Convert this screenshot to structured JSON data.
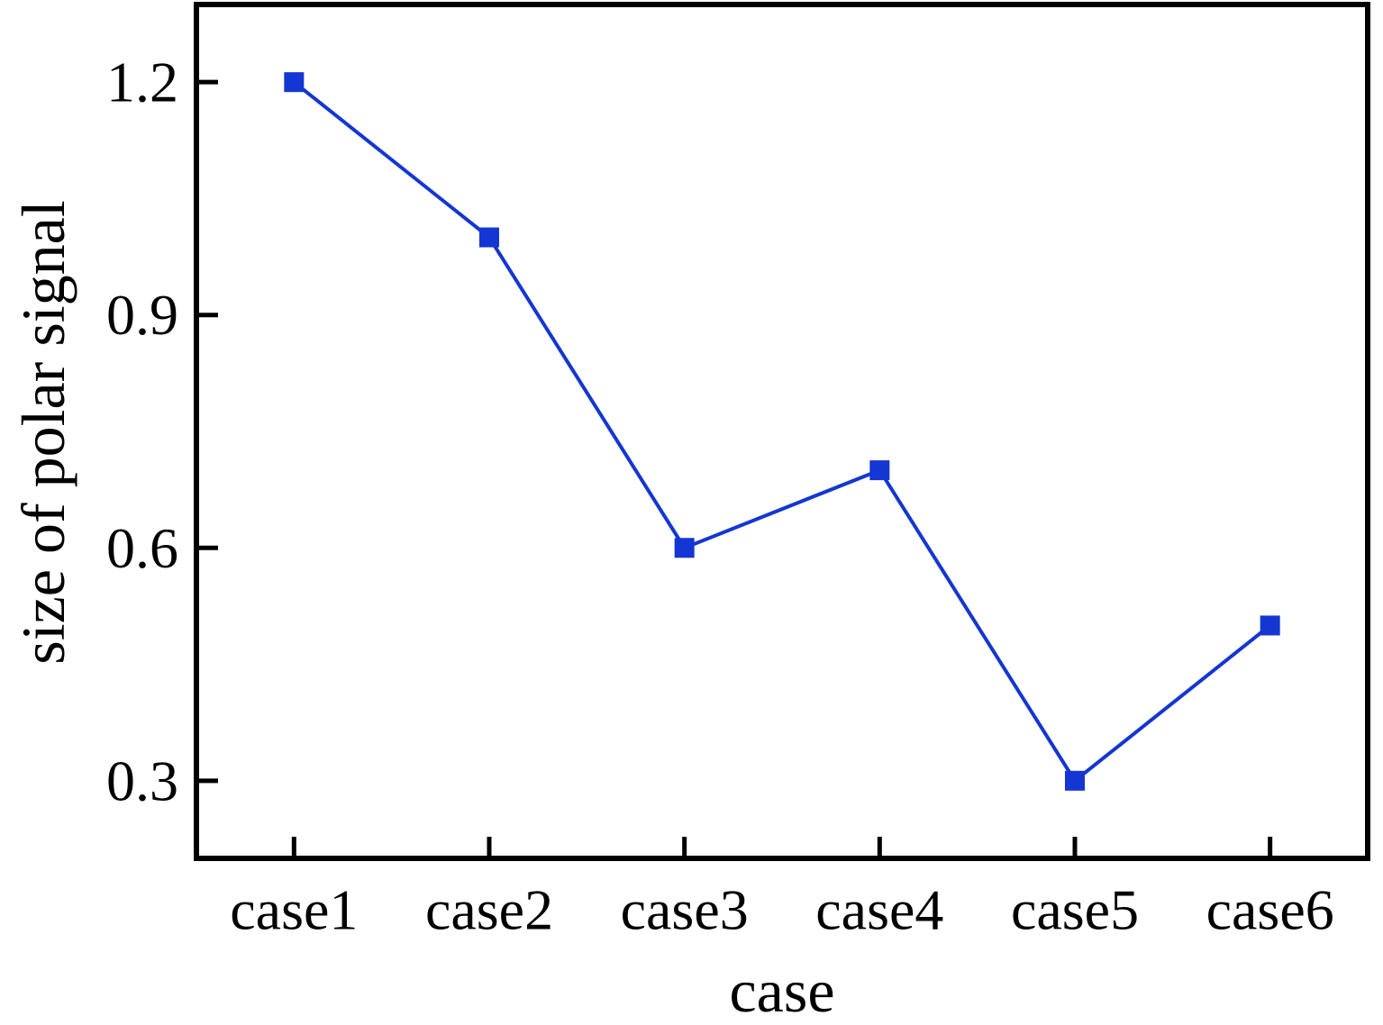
{
  "chart_data": {
    "type": "line",
    "title": "",
    "xlabel": "case",
    "ylabel": "size of polar signal",
    "categories": [
      "case1",
      "case2",
      "case3",
      "case4",
      "case5",
      "case6"
    ],
    "series": [
      {
        "name": "size of polar signal",
        "values": [
          1.2,
          1.0,
          0.6,
          0.7,
          0.3,
          0.5
        ]
      }
    ],
    "y_ticks": [
      1.2,
      0.9,
      0.6,
      0.3
    ],
    "y_tick_labels": [
      "1.2",
      "0.9",
      "0.6",
      "0.3"
    ],
    "ylim": [
      0.2,
      1.3
    ],
    "grid": false,
    "legend_position": "none",
    "marker": "square",
    "line_color": "#1436d2",
    "axis_color": "#000000",
    "background_color": "#ffffff"
  }
}
